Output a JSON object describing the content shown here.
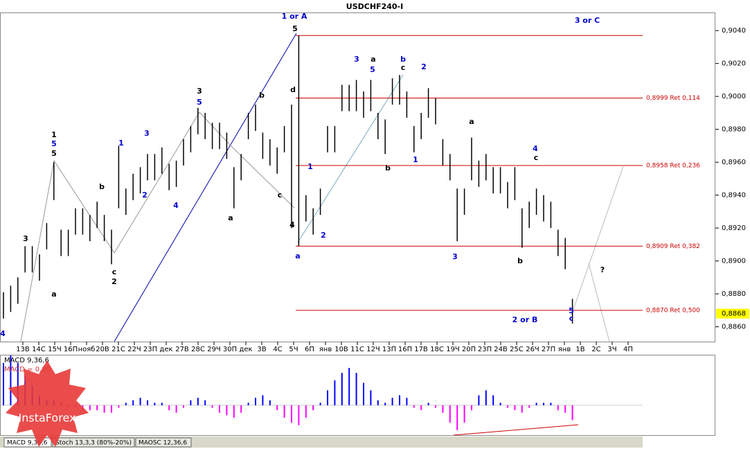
{
  "chart_data": [
    {
      "type": "ohlc",
      "title": "USDCHF240-I",
      "categories": [
        "13В",
        "14С",
        "15Ч",
        "16П",
        "нояб",
        "20В",
        "21С",
        "22Ч",
        "23П",
        "дек",
        "27В",
        "28С",
        "29Ч",
        "30П",
        "дек",
        "3В",
        "4С",
        "5Ч",
        "6П",
        "янв",
        "10В",
        "11С",
        "12Ч",
        "13П",
        "16П",
        "17В",
        "18С",
        "19Ч",
        "20П",
        "23П",
        "24В",
        "25С",
        "26Ч",
        "27П",
        "янв",
        "1В",
        "2С",
        "3Ч",
        "4П"
      ],
      "high": [
        0.8881,
        0.8885,
        0.889,
        0.8909,
        0.8909,
        0.8904,
        0.8923,
        0.896,
        0.8919,
        0.8919,
        0.8932,
        0.8932,
        0.8928,
        0.8936,
        0.8928,
        0.8919,
        0.897,
        0.8944,
        0.8953,
        0.8957,
        0.8965,
        0.8965,
        0.8969,
        0.8959,
        0.8961,
        0.8974,
        0.8982,
        0.8993,
        0.899,
        0.8984,
        0.8984,
        0.8978,
        0.8957,
        0.8965,
        0.899,
        0.8995,
        0.8978,
        0.8974,
        0.8969,
        0.8982,
        0.8995,
        0.9037,
        0.894,
        0.8932,
        0.8944,
        0.8982,
        0.8982,
        0.9007,
        0.9007,
        0.901,
        0.9003,
        0.901,
        0.899,
        0.8986,
        0.9011,
        0.9013,
        0.9003,
        0.8982,
        0.899,
        0.9005,
        0.8999,
        0.8974,
        0.8965,
        0.8944,
        0.8944,
        0.8975,
        0.8961,
        0.8965,
        0.8957,
        0.8957,
        0.8948,
        0.8957,
        0.8932,
        0.8936,
        0.8944,
        0.894,
        0.8936,
        0.8919,
        0.8914,
        0.8877
      ],
      "low": [
        0.8865,
        0.8869,
        0.8874,
        0.8893,
        0.8893,
        0.8888,
        0.8907,
        0.8937,
        0.8903,
        0.8903,
        0.8916,
        0.8916,
        0.8912,
        0.892,
        0.8912,
        0.8898,
        0.8932,
        0.8928,
        0.8937,
        0.8941,
        0.8949,
        0.8949,
        0.8953,
        0.8943,
        0.8945,
        0.8958,
        0.8966,
        0.8977,
        0.8974,
        0.8968,
        0.8968,
        0.8962,
        0.8932,
        0.8949,
        0.8974,
        0.8979,
        0.8962,
        0.8958,
        0.8953,
        0.8966,
        0.892,
        0.8909,
        0.8924,
        0.8916,
        0.8928,
        0.8966,
        0.8966,
        0.8991,
        0.8991,
        0.8991,
        0.8987,
        0.8991,
        0.8974,
        0.8965,
        0.8995,
        0.8995,
        0.8987,
        0.8966,
        0.8974,
        0.8987,
        0.8983,
        0.8958,
        0.8949,
        0.8912,
        0.8928,
        0.8949,
        0.8945,
        0.8949,
        0.8941,
        0.8941,
        0.8932,
        0.8937,
        0.8908,
        0.892,
        0.8928,
        0.8924,
        0.892,
        0.8903,
        0.8895,
        0.8862
      ],
      "color": "#000000",
      "ylim": [
        0.8851,
        0.9051
      ],
      "yticks": [
        {
          "value": 0.886,
          "label": "0,8860"
        },
        {
          "value": 0.888,
          "label": "0,8880"
        },
        {
          "value": 0.89,
          "label": "0,8900"
        },
        {
          "value": 0.892,
          "label": "0,8920"
        },
        {
          "value": 0.894,
          "label": "0,8940"
        },
        {
          "value": 0.896,
          "label": "0,8960"
        },
        {
          "value": 0.898,
          "label": "0,8980"
        },
        {
          "value": 0.9,
          "label": "0,9000"
        },
        {
          "value": 0.902,
          "label": "0,9020"
        },
        {
          "value": 0.904,
          "label": "0,9040"
        }
      ],
      "levels": [
        0.9037,
        0.8999,
        0.8958,
        0.8909,
        0.887
      ],
      "level_labels": [
        null,
        "0,8999 Ret 0,114",
        "0,8958 Ret 0,236",
        "0,8909 Ret 0,382",
        "0,8870 Ret 0,500"
      ],
      "level_color": "#cc0000",
      "current_price": {
        "value": 0.8868,
        "label": "0,8868"
      },
      "annotations": [
        {
          "text": "1 or A",
          "color": "#0000cc"
        },
        {
          "text": "3 or C",
          "color": "#0000cc"
        },
        {
          "text": "2 or B",
          "color": "#0000cc"
        },
        {
          "text": "?",
          "color": "#000000"
        },
        {
          "text": "5",
          "color": "#000000"
        },
        {
          "text": "a",
          "color": "#0000cc"
        },
        {
          "text": "1",
          "color": "#000000"
        },
        {
          "text": "5",
          "color": "#0000cc"
        },
        {
          "text": "5",
          "color": "#000000"
        },
        {
          "text": "a",
          "color": "#000000"
        },
        {
          "text": "c",
          "color": "#000000"
        },
        {
          "text": "2",
          "color": "#000000"
        },
        {
          "text": "b",
          "color": "#000000"
        },
        {
          "text": "1",
          "color": "#0000cc"
        },
        {
          "text": "3",
          "color": "#0000cc"
        },
        {
          "text": "2",
          "color": "#0000cc"
        },
        {
          "text": "4",
          "color": "#0000cc"
        },
        {
          "text": "3",
          "color": "#000000"
        },
        {
          "text": "5",
          "color": "#0000cc"
        },
        {
          "text": "a",
          "color": "#000000"
        },
        {
          "text": "b",
          "color": "#000000"
        },
        {
          "text": "c",
          "color": "#000000"
        },
        {
          "text": "d",
          "color": "#000000"
        },
        {
          "text": "4",
          "color": "#000000"
        },
        {
          "text": "1",
          "color": "#0000cc"
        },
        {
          "text": "2",
          "color": "#0000cc"
        },
        {
          "text": "3",
          "color": "#0000cc"
        },
        {
          "text": "a",
          "color": "#000000"
        },
        {
          "text": "5",
          "color": "#0000cc"
        },
        {
          "text": "b",
          "color": "#0000cc"
        },
        {
          "text": "c",
          "color": "#000000"
        },
        {
          "text": "2",
          "color": "#0000cc"
        },
        {
          "text": "1",
          "color": "#0000cc"
        },
        {
          "text": "b",
          "color": "#000000"
        },
        {
          "text": "3",
          "color": "#0000cc"
        },
        {
          "text": "a",
          "color": "#000000"
        },
        {
          "text": "b",
          "color": "#000000"
        },
        {
          "text": "4",
          "color": "#0000cc"
        },
        {
          "text": "c",
          "color": "#000000"
        },
        {
          "text": "5",
          "color": "#0000cc"
        },
        {
          "text": "c",
          "color": "#0000cc"
        },
        {
          "text": "4",
          "color": "#0000cc"
        },
        {
          "text": "3",
          "color": "#000000"
        }
      ]
    },
    {
      "type": "histogram",
      "title": "MACD 9,36,6",
      "subtitle": "MACD = 0,00",
      "values": [
        0.0017,
        0.002,
        0.0017,
        0.0012,
        0.0008,
        0.0004,
        0.0002,
        0.0002,
        0.0001,
        -0.0001,
        -0.0001,
        -0.0002,
        -0.0002,
        -0.0002,
        -0.0003,
        -0.0003,
        -0.0001,
        0.0001,
        0.0002,
        0.0003,
        0.0002,
        0.0001,
        0.0001,
        -0.0002,
        -0.0003,
        -0.0001,
        0.0002,
        0.0003,
        0.0002,
        -0.0001,
        -0.0003,
        -0.0004,
        -0.0005,
        -0.0003,
        0.0001,
        0.0003,
        0.0004,
        0.0002,
        -0.0002,
        -0.0005,
        -0.0007,
        -0.0008,
        -0.0005,
        -0.0002,
        0.0001,
        0.0006,
        0.001,
        0.0013,
        0.0015,
        0.0013,
        0.0009,
        0.0006,
        0.0002,
        0.0001,
        0.0003,
        0.0004,
        0.0003,
        -0.0001,
        -0.0002,
        0.0001,
        -0.0001,
        -0.0003,
        -0.0007,
        -0.001,
        -0.0007,
        -0.0002,
        0.0004,
        0.0006,
        0.0004,
        0.0001,
        -0.0001,
        -0.0002,
        -0.0003,
        -0.0001,
        0.0001,
        0.0001,
        0.0001,
        -0.0002,
        -0.0003,
        -0.0006
      ],
      "positive_color": "#0000ff",
      "negative_color": "#ff00ff",
      "ylim": [
        -0.0012,
        0.002
      ]
    }
  ],
  "tabs": [
    "MACD 9,36,6",
    "Stoch 13,3,3 (80%-20%)",
    "MAOSC 12,36,6"
  ],
  "watermark": "InstaForex"
}
